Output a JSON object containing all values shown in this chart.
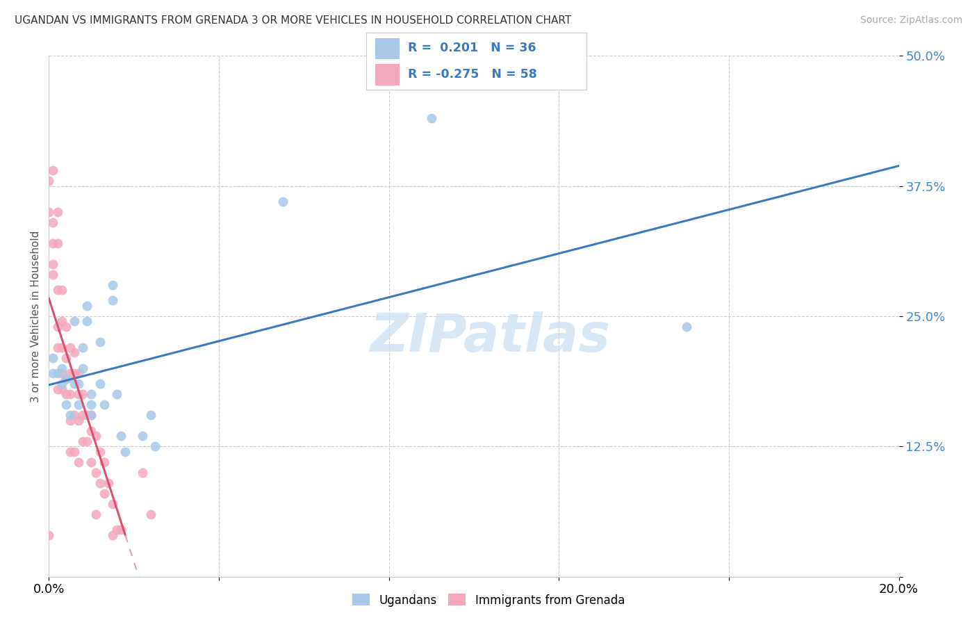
{
  "title": "UGANDAN VS IMMIGRANTS FROM GRENADA 3 OR MORE VEHICLES IN HOUSEHOLD CORRELATION CHART",
  "source": "Source: ZipAtlas.com",
  "ylabel": "3 or more Vehicles in Household",
  "xlim": [
    0.0,
    0.2
  ],
  "ylim": [
    0.0,
    0.5
  ],
  "watermark": "ZIPatlas",
  "color_ugandan": "#a8c8e8",
  "color_grenada": "#f4a8bc",
  "line_color_ugandan": "#3a7abf",
  "line_color_grenada": "#d94f70",
  "line_color_grenada_dash": "#e0a0b4",
  "background_color": "#ffffff",
  "ugandan_x": [
    0.001,
    0.001,
    0.002,
    0.003,
    0.003,
    0.004,
    0.004,
    0.005,
    0.006,
    0.006,
    0.007,
    0.007,
    0.008,
    0.008,
    0.009,
    0.009,
    0.01,
    0.01,
    0.01,
    0.012,
    0.012,
    0.013,
    0.015,
    0.015,
    0.016,
    0.017,
    0.018,
    0.022,
    0.024,
    0.025,
    0.055,
    0.09,
    0.15
  ],
  "ugandan_y": [
    0.195,
    0.21,
    0.195,
    0.2,
    0.185,
    0.19,
    0.165,
    0.155,
    0.245,
    0.185,
    0.185,
    0.165,
    0.22,
    0.2,
    0.26,
    0.245,
    0.175,
    0.165,
    0.155,
    0.225,
    0.185,
    0.165,
    0.28,
    0.265,
    0.175,
    0.135,
    0.12,
    0.135,
    0.155,
    0.125,
    0.36,
    0.44,
    0.24
  ],
  "grenada_x": [
    0.0,
    0.0,
    0.0,
    0.001,
    0.001,
    0.001,
    0.001,
    0.001,
    0.002,
    0.002,
    0.002,
    0.002,
    0.002,
    0.002,
    0.003,
    0.003,
    0.003,
    0.003,
    0.003,
    0.004,
    0.004,
    0.004,
    0.004,
    0.005,
    0.005,
    0.005,
    0.005,
    0.005,
    0.006,
    0.006,
    0.006,
    0.006,
    0.007,
    0.007,
    0.007,
    0.007,
    0.008,
    0.008,
    0.008,
    0.009,
    0.009,
    0.01,
    0.01,
    0.01,
    0.011,
    0.011,
    0.011,
    0.012,
    0.012,
    0.013,
    0.013,
    0.014,
    0.015,
    0.015,
    0.016,
    0.017,
    0.022,
    0.024
  ],
  "grenada_y": [
    0.38,
    0.35,
    0.04,
    0.39,
    0.34,
    0.32,
    0.3,
    0.29,
    0.35,
    0.32,
    0.275,
    0.24,
    0.22,
    0.18,
    0.275,
    0.245,
    0.22,
    0.195,
    0.18,
    0.24,
    0.21,
    0.19,
    0.175,
    0.22,
    0.195,
    0.175,
    0.15,
    0.12,
    0.215,
    0.195,
    0.155,
    0.12,
    0.195,
    0.175,
    0.15,
    0.11,
    0.175,
    0.155,
    0.13,
    0.155,
    0.13,
    0.155,
    0.14,
    0.11,
    0.135,
    0.1,
    0.06,
    0.12,
    0.09,
    0.11,
    0.08,
    0.09,
    0.07,
    0.04,
    0.045,
    0.045,
    0.1,
    0.06
  ]
}
